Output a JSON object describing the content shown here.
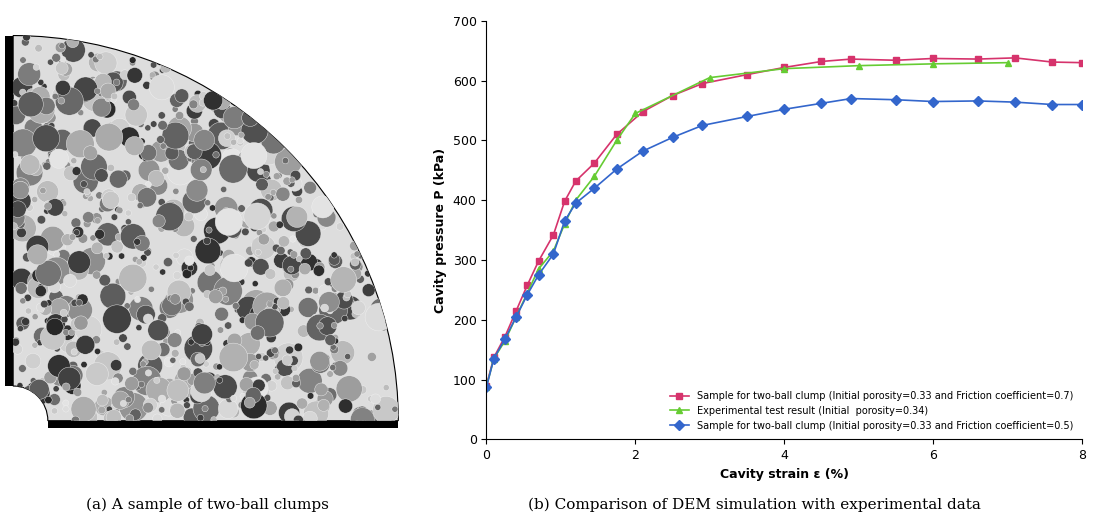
{
  "captions": [
    "(a) A sample of two-ball clumps",
    "(b) Comparison of DEM simulation with experimental data"
  ],
  "chart_data": {
    "type": "line",
    "x_label": "Cavity strain ε (%)",
    "y_label": "Cavity pressure P (kPa)",
    "xlim": [
      0,
      8
    ],
    "xticks": [
      0,
      2,
      4,
      6,
      8
    ],
    "ylim": [
      0,
      700
    ],
    "yticks": [
      0,
      100,
      200,
      300,
      400,
      500,
      600,
      700
    ],
    "grid": false,
    "legend": "lower right",
    "series": [
      {
        "name": "Sample for two-ball clump (Initial porosity=0.33 and Friction coefficient=0.7)",
        "color": "#d6336c",
        "marker": "square",
        "x": [
          0,
          0.1,
          0.25,
          0.4,
          0.55,
          0.7,
          0.9,
          1.05,
          1.2,
          1.45,
          1.75,
          2.1,
          2.5,
          2.9,
          3.5,
          4,
          4.5,
          4.9,
          5.5,
          6,
          6.6,
          7.1,
          7.6,
          8
        ],
        "values": [
          90,
          137,
          172,
          215,
          258,
          298,
          342,
          398,
          432,
          462,
          510,
          548,
          575,
          595,
          610,
          622,
          632,
          636,
          634,
          637,
          636,
          638,
          631,
          630
        ]
      },
      {
        "name": "Experimental test result (Initial  porosity=0.34)",
        "color": "#66cc33",
        "marker": "triangle",
        "x": [
          0,
          0.1,
          0.25,
          0.4,
          0.55,
          0.7,
          0.9,
          1.05,
          1.2,
          1.45,
          1.75,
          2,
          3,
          4,
          5,
          6,
          7
        ],
        "values": [
          88,
          135,
          165,
          205,
          245,
          285,
          315,
          360,
          400,
          440,
          500,
          545,
          605,
          620,
          625,
          628,
          630
        ]
      },
      {
        "name": "Sample for two-ball clump (Initial porosity=0.33 and Friction coefficient=0.5)",
        "color": "#3366cc",
        "marker": "diamond",
        "x": [
          0,
          0.1,
          0.25,
          0.4,
          0.55,
          0.7,
          0.9,
          1.05,
          1.2,
          1.45,
          1.75,
          2.1,
          2.5,
          2.9,
          3.5,
          4,
          4.5,
          4.9,
          5.5,
          6,
          6.6,
          7.1,
          7.6,
          8
        ],
        "values": [
          87,
          135,
          168,
          205,
          242,
          275,
          310,
          365,
          395,
          420,
          452,
          482,
          505,
          525,
          540,
          552,
          562,
          570,
          568,
          565,
          566,
          564,
          560,
          560
        ]
      }
    ]
  }
}
